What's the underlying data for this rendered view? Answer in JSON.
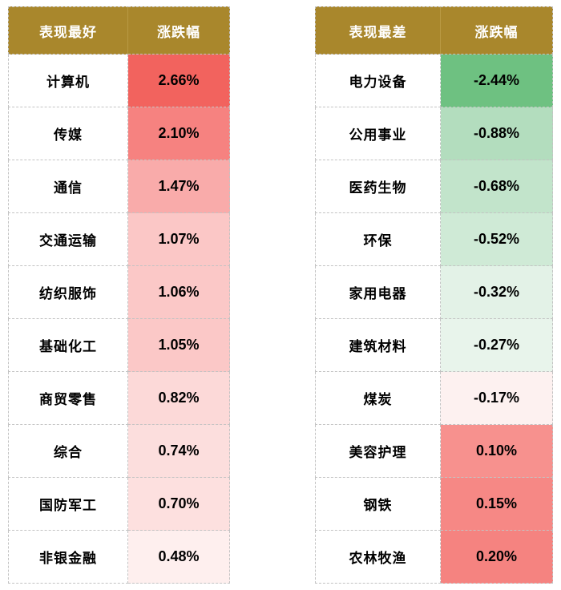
{
  "header": {
    "best_label": "表现最好",
    "best_change_label": "涨跌幅",
    "worst_label": "表现最差",
    "worst_change_label": "涨跌幅"
  },
  "colors": {
    "header_bg": "#a9872c",
    "header_text": "#ffffff",
    "border": "#c3c3c3",
    "max_gain_red": "#f2635e",
    "max_loss_green": "#6ec181"
  },
  "best_rows": [
    {
      "name": "计算机",
      "value": "2.66%",
      "bg": "#f2635e"
    },
    {
      "name": "传媒",
      "value": "2.10%",
      "bg": "#f68280"
    },
    {
      "name": "通信",
      "value": "1.47%",
      "bg": "#f9abaa"
    },
    {
      "name": "交通运输",
      "value": "1.07%",
      "bg": "#fbc7c6"
    },
    {
      "name": "纺织服饰",
      "value": "1.06%",
      "bg": "#fbc8c7"
    },
    {
      "name": "基础化工",
      "value": "1.05%",
      "bg": "#fbc8c7"
    },
    {
      "name": "商贸零售",
      "value": "0.82%",
      "bg": "#fcd9d8"
    },
    {
      "name": "综合",
      "value": "0.74%",
      "bg": "#fcdedd"
    },
    {
      "name": "国防军工",
      "value": "0.70%",
      "bg": "#fde0df"
    },
    {
      "name": "非银金融",
      "value": "0.48%",
      "bg": "#feefee"
    }
  ],
  "worst_rows": [
    {
      "name": "电力设备",
      "value": "-2.44%",
      "bg": "#6ec181"
    },
    {
      "name": "公用事业",
      "value": "-0.88%",
      "bg": "#b3ddbe"
    },
    {
      "name": "医药生物",
      "value": "-0.68%",
      "bg": "#c2e4cb"
    },
    {
      "name": "环保",
      "value": "-0.52%",
      "bg": "#cfead6"
    },
    {
      "name": "家用电器",
      "value": "-0.32%",
      "bg": "#e3f2e7"
    },
    {
      "name": "建筑材料",
      "value": "-0.27%",
      "bg": "#e8f4eb"
    },
    {
      "name": "煤炭",
      "value": "-0.17%",
      "bg": "#fdf1f0"
    },
    {
      "name": "美容护理",
      "value": "0.10%",
      "bg": "#f7918e"
    },
    {
      "name": "钢铁",
      "value": "0.15%",
      "bg": "#f68885"
    },
    {
      "name": "农林牧渔",
      "value": "0.20%",
      "bg": "#f58380"
    }
  ]
}
